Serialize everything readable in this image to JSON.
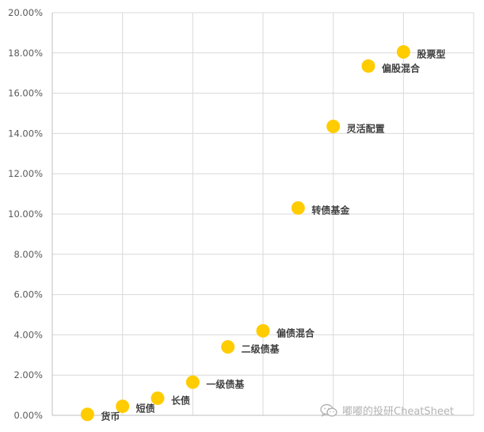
{
  "chart_data": {
    "type": "scatter",
    "title": "",
    "xlabel": "",
    "ylabel": "",
    "ylim": [
      0,
      20
    ],
    "y_ticks": [
      "0.00%",
      "2.00%",
      "4.00%",
      "6.00%",
      "8.00%",
      "10.00%",
      "12.00%",
      "14.00%",
      "16.00%",
      "18.00%",
      "20.00%"
    ],
    "grid": true,
    "point_color": "#FFCC00",
    "points": [
      {
        "label": "货币",
        "x": 1.0,
        "y": 0.05
      },
      {
        "label": "短债",
        "x": 2.0,
        "y": 0.45
      },
      {
        "label": "长债",
        "x": 3.0,
        "y": 0.85
      },
      {
        "label": "一级债基",
        "x": 4.0,
        "y": 1.65
      },
      {
        "label": "二级债基",
        "x": 5.0,
        "y": 3.4
      },
      {
        "label": "偏债混合",
        "x": 6.0,
        "y": 4.2
      },
      {
        "label": "转债基金",
        "x": 7.0,
        "y": 10.3
      },
      {
        "label": "灵活配置",
        "x": 8.0,
        "y": 14.35
      },
      {
        "label": "偏股混合",
        "x": 9.0,
        "y": 17.35
      },
      {
        "label": "股票型",
        "x": 10.0,
        "y": 18.05
      }
    ]
  },
  "watermark": {
    "text": "嘟嘟的投研CheatSheet",
    "icon": "wechat-icon"
  }
}
